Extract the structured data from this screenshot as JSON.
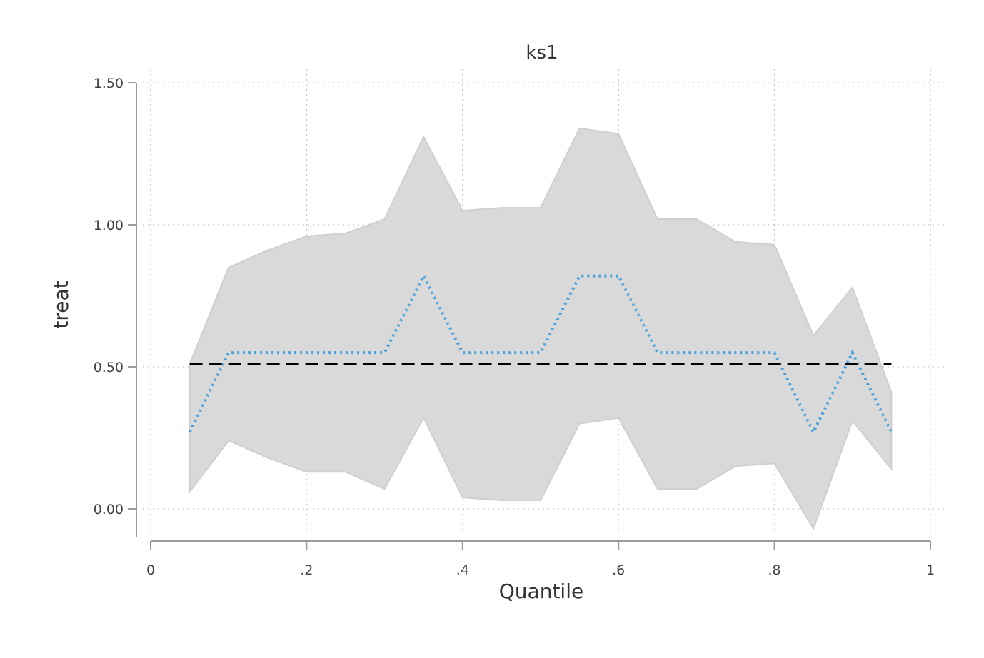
{
  "chart_data": {
    "type": "line",
    "title": "ks1",
    "xlabel": "Quantile",
    "ylabel": "treat",
    "xlim": [
      0,
      1
    ],
    "ylim": [
      -0.11,
      1.5
    ],
    "x_ticks": [
      0,
      0.2,
      0.4,
      0.6,
      0.8,
      1
    ],
    "x_tick_labels": [
      "0",
      ".2",
      ".4",
      ".6",
      ".8",
      "1"
    ],
    "y_ticks": [
      0,
      0.5,
      1.0,
      1.5
    ],
    "y_tick_labels": [
      "0.00",
      "0.50",
      "1.00",
      "1.50"
    ],
    "grid": true,
    "legend": "none",
    "x": [
      0.05,
      0.1,
      0.15,
      0.2,
      0.25,
      0.3,
      0.35,
      0.4,
      0.45,
      0.5,
      0.55,
      0.6,
      0.65,
      0.7,
      0.75,
      0.8,
      0.85,
      0.9,
      0.95
    ],
    "series": [
      {
        "kind": "band",
        "color": "#d9d9d9",
        "upper": [
          0.51,
          0.85,
          0.91,
          0.96,
          0.97,
          1.02,
          1.31,
          1.05,
          1.06,
          1.06,
          1.34,
          1.32,
          1.02,
          1.02,
          0.94,
          0.93,
          0.61,
          0.78,
          0.41
        ],
        "lower": [
          0.06,
          0.24,
          0.18,
          0.13,
          0.13,
          0.07,
          0.32,
          0.04,
          0.03,
          0.03,
          0.3,
          0.32,
          0.07,
          0.07,
          0.15,
          0.16,
          -0.07,
          0.31,
          0.14
        ]
      },
      {
        "kind": "line",
        "style": "dotted",
        "color": "#4aa3df",
        "values": [
          0.27,
          0.55,
          0.55,
          0.55,
          0.55,
          0.55,
          0.82,
          0.55,
          0.55,
          0.55,
          0.82,
          0.82,
          0.55,
          0.55,
          0.55,
          0.55,
          0.27,
          0.55,
          0.27
        ]
      },
      {
        "kind": "line",
        "style": "dashed",
        "color": "#000000",
        "values": [
          0.51,
          0.51,
          0.51,
          0.51,
          0.51,
          0.51,
          0.51,
          0.51,
          0.51,
          0.51,
          0.51,
          0.51,
          0.51,
          0.51,
          0.51,
          0.51,
          0.51,
          0.51,
          0.51
        ]
      }
    ]
  }
}
